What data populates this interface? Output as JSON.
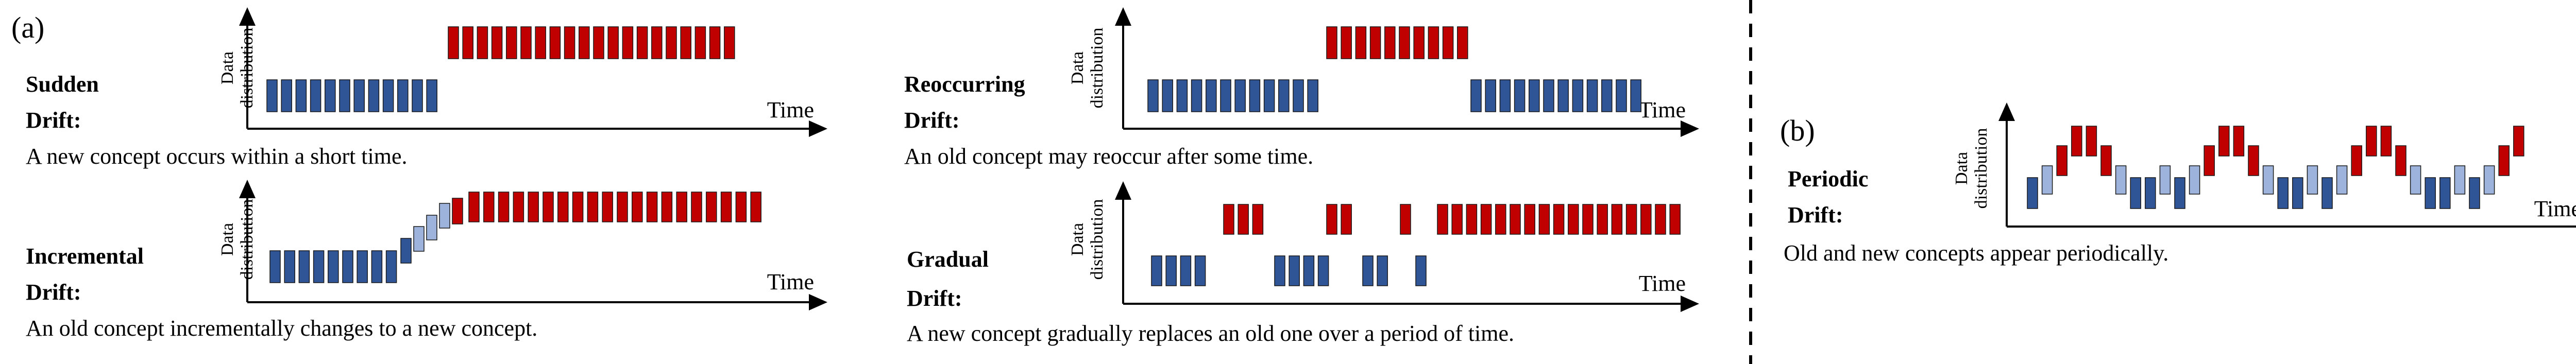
{
  "panel_a": {
    "label": "(a)",
    "sudden": {
      "name_line1": "Sudden",
      "name_line2": "Drift:",
      "description": "A new concept occurs within a short time.",
      "ylabel_line1": "Data",
      "ylabel_line2": "distribution",
      "xlabel": "Time"
    },
    "reoccurring": {
      "name_line1": "Reoccurring",
      "name_line2": "Drift:",
      "description": "An old concept may reoccur after some time.",
      "ylabel_line1": "Data",
      "ylabel_line2": "distribution",
      "xlabel": "Time"
    },
    "incremental": {
      "name_line1": "Incremental",
      "name_line2": "Drift:",
      "description": "An old concept incrementally changes to a new concept.",
      "ylabel_line1": "Data",
      "ylabel_line2": "distribution",
      "xlabel": "Time"
    },
    "gradual": {
      "name_line1": "Gradual",
      "name_line2": "Drift:",
      "description": "A new concept gradually replaces an old one over a period of time.",
      "ylabel_line1": "Data",
      "ylabel_line2": "distribution",
      "xlabel": "Time"
    }
  },
  "panel_b": {
    "label": "(b)",
    "periodic": {
      "name_line1": "Periodic",
      "name_line2": "Drift:",
      "description": "Old and new concepts appear periodically.",
      "ylabel_line1": "Data",
      "ylabel_line2": "distribution",
      "xlabel": "Time"
    }
  },
  "colors": {
    "old_concept": "#2f5597",
    "new_concept": "#c00000",
    "transition": "#9db3dc",
    "axis": "#000000",
    "divider": "#000000"
  }
}
